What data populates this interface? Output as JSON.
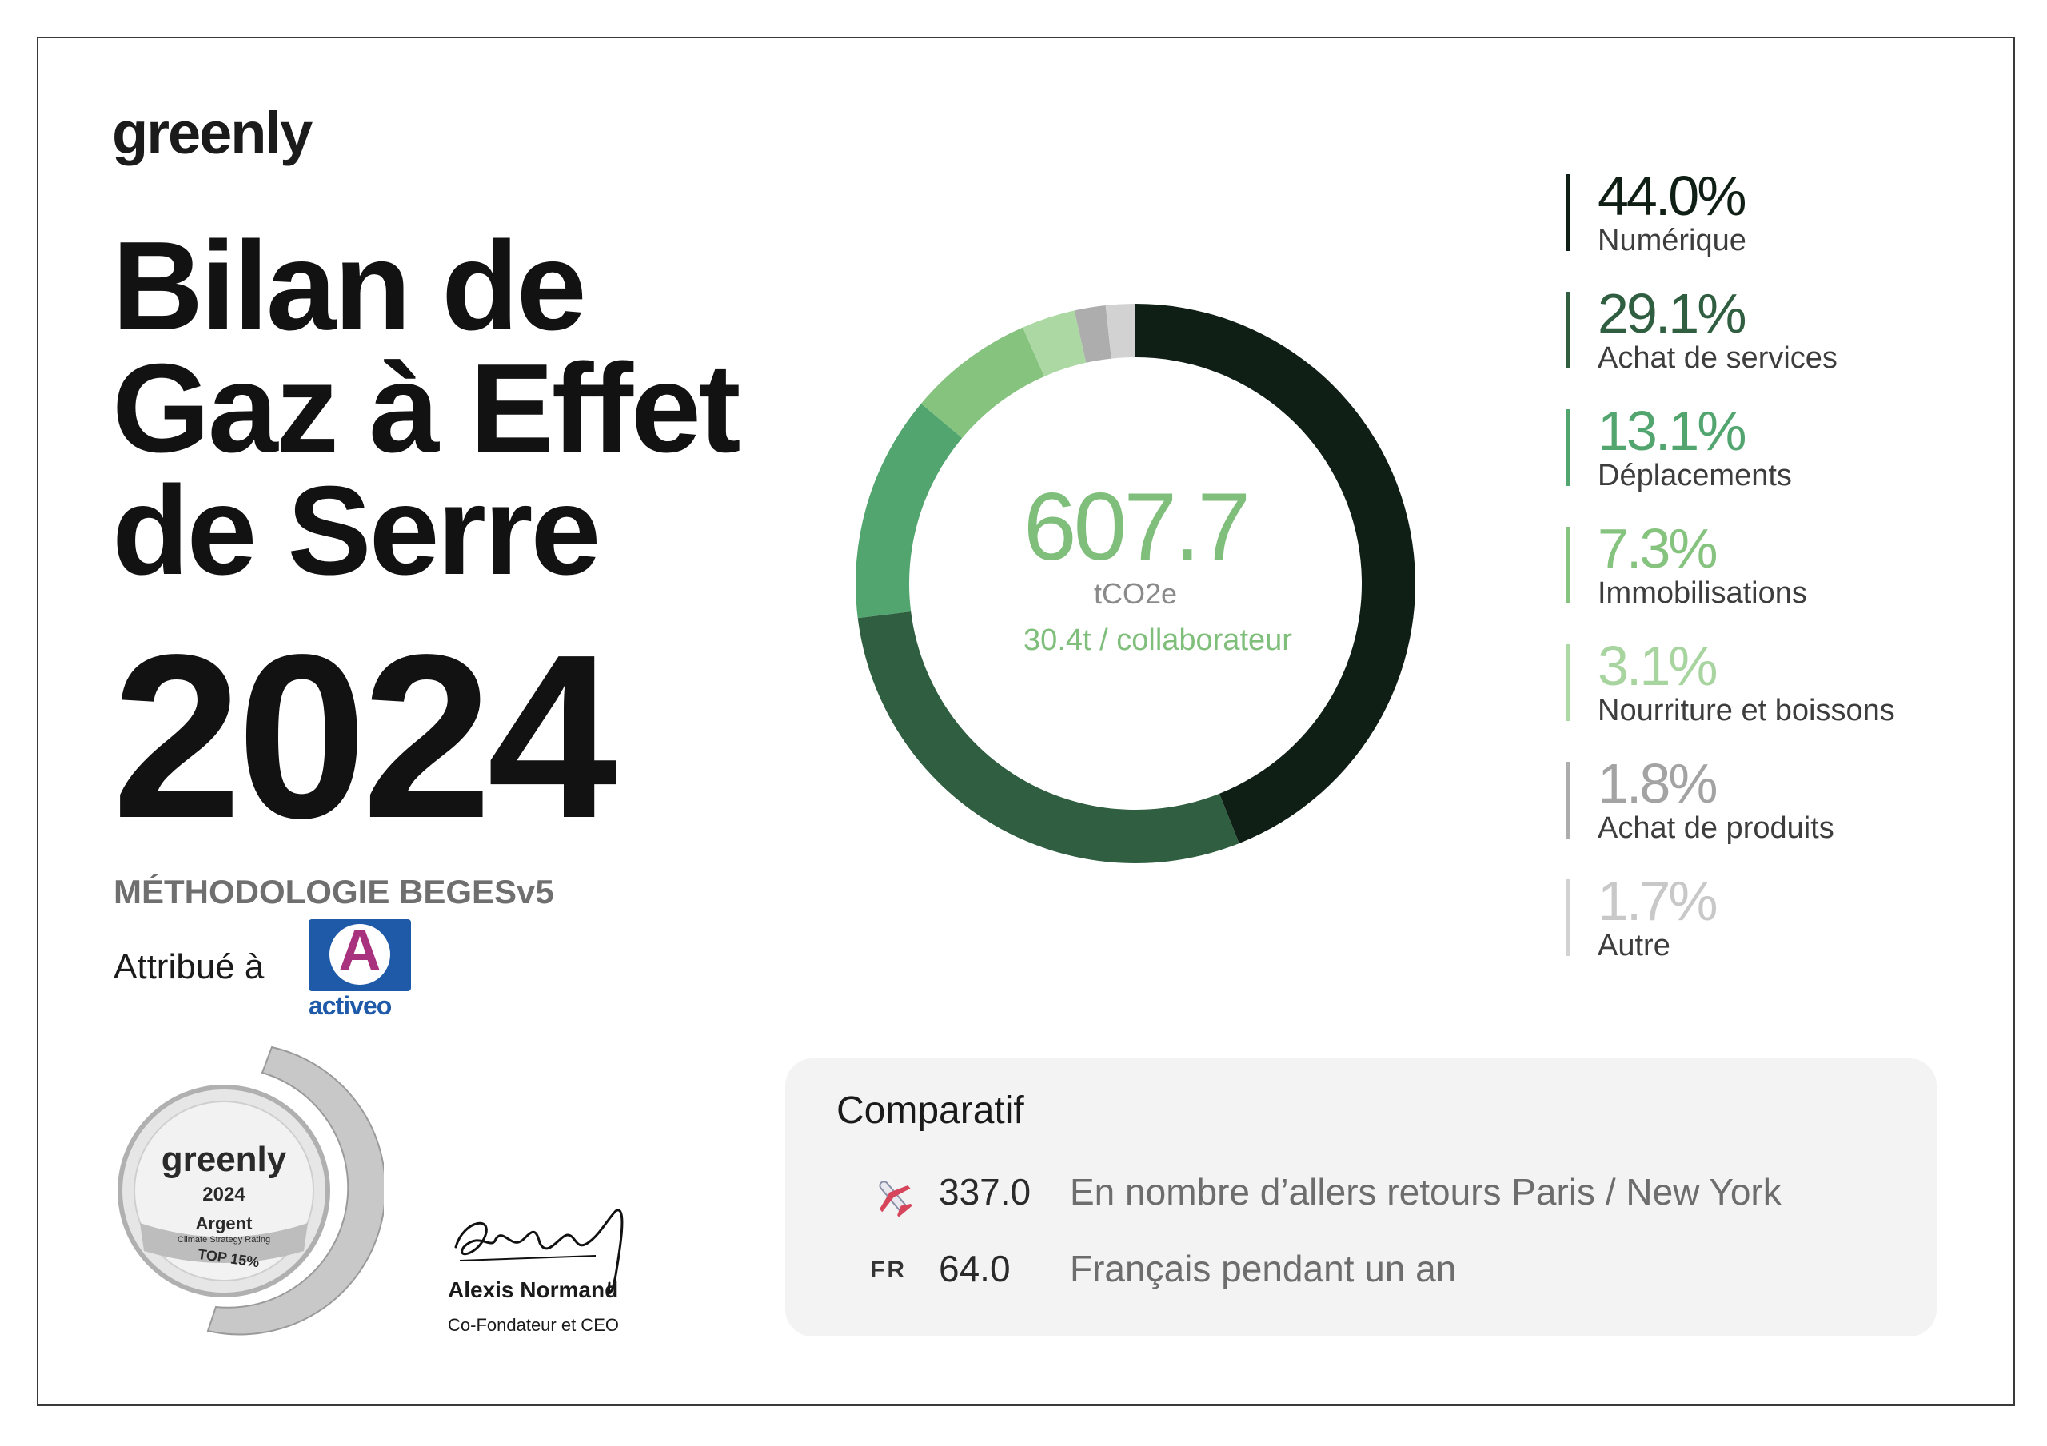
{
  "brand": {
    "logo_text": "greenly"
  },
  "title": {
    "line1": "Bilan de",
    "line2": "Gaz à Effet",
    "line3": "de Serre",
    "year": "2024"
  },
  "methodology": "MÉTHODOLOGIE BEGESv5",
  "attribution": {
    "label": "Attribué à",
    "company_logo_letter": "A",
    "company_logo_word": "activeo"
  },
  "medal": {
    "brand": "greenly",
    "year": "2024",
    "level": "Argent",
    "rating": "Climate Strategy Rating",
    "rank": "TOP 15%"
  },
  "signature": {
    "name": "Alexis Normand",
    "role": "Co-Fondateur et CEO"
  },
  "chart_data": {
    "type": "pie",
    "donut": true,
    "center": {
      "value": "607.7",
      "unit": "tCO2e",
      "per_employee": "30.4t / collaborateur"
    },
    "categories": [
      "Numérique",
      "Achat de services",
      "Déplacements",
      "Immobilisations",
      "Nourriture et boissons",
      "Achat de produits",
      "Autre"
    ],
    "values": [
      44.0,
      29.1,
      13.1,
      7.3,
      3.1,
      1.8,
      1.7
    ],
    "labels": [
      "44.0%",
      "29.1%",
      "13.1%",
      "7.3%",
      "3.1%",
      "1.8%",
      "1.7%"
    ],
    "colors": [
      "#101f16",
      "#2f5e40",
      "#52a56f",
      "#86c37f",
      "#acd9a3",
      "#adadad",
      "#d2d2d2"
    ],
    "legend_position": "right"
  },
  "comparison": {
    "title": "Comparatif",
    "rows": [
      {
        "icon": "airplane-icon",
        "value": "337.0",
        "label": "En nombre d’allers retours Paris / New York"
      },
      {
        "icon": "FR",
        "value": "64.0",
        "label": "Français pendant un an"
      }
    ]
  }
}
